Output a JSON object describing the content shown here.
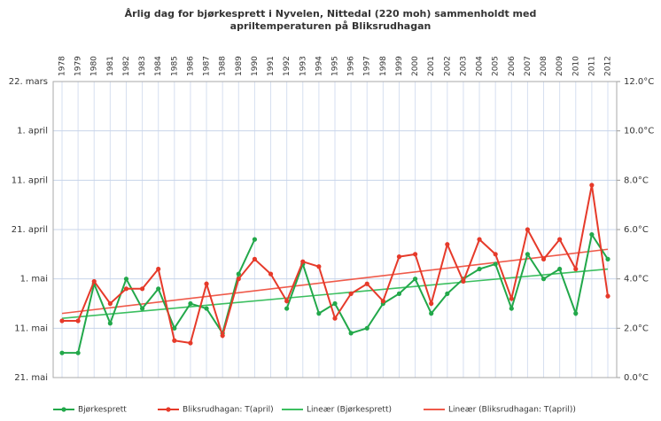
{
  "chart_data": {
    "type": "line",
    "title": [
      "Årlig dag for bjørkesprett  i Nyvelen, Nittedal (220 moh) sammenholdt med",
      "apriltemperaturen på Bliksrudhagan"
    ],
    "categories": [
      "1978",
      "1979",
      "1980",
      "1981",
      "1982",
      "1983",
      "1984",
      "1985",
      "1986",
      "1987",
      "1988",
      "1989",
      "1990",
      "1991",
      "1992",
      "1993",
      "1994",
      "1995",
      "1996",
      "1997",
      "1998",
      "1999",
      "2000",
      "2001",
      "2002",
      "2003",
      "2004",
      "2005",
      "2006",
      "2007",
      "2008",
      "2009",
      "2010",
      "2011",
      "2012"
    ],
    "series": [
      {
        "name": "Bjørkesprett",
        "color": "#22a84a",
        "values": [
          136,
          136,
          122,
          130,
          121,
          127,
          123,
          131,
          126,
          127,
          132,
          120,
          113,
          null,
          127,
          118,
          128,
          126,
          132,
          131,
          126,
          124,
          121,
          128,
          124,
          121,
          119,
          118,
          127,
          116,
          121,
          119,
          128,
          112,
          117
        ]
      },
      {
        "name": "Bliksrudhagan: T(april)",
        "color": "#e63a2a",
        "axis": "y2",
        "values": [
          2.3,
          2.3,
          3.9,
          3.0,
          3.6,
          3.6,
          4.4,
          1.5,
          1.4,
          3.8,
          1.7,
          4.0,
          4.8,
          4.2,
          3.1,
          4.7,
          4.5,
          2.4,
          3.4,
          3.8,
          3.1,
          4.9,
          5.0,
          3.0,
          5.4,
          3.9,
          5.6,
          5.0,
          3.2,
          6.0,
          4.8,
          5.6,
          4.4,
          7.8,
          3.3
        ]
      }
    ],
    "trends": [
      {
        "name": "Lineær (Bjørkesprett)",
        "color": "#3cbf60",
        "from": 129,
        "to": 119
      },
      {
        "name": "Lineær (Bliksrudhagan: T(april))",
        "color": "#ef5a4a",
        "axis": "y2",
        "from": 2.6,
        "to": 5.2
      }
    ],
    "ylim": [
      141,
      81
    ],
    "yticks": [
      {
        "value": 81,
        "label": "22. mars"
      },
      {
        "value": 91,
        "label": "1. april"
      },
      {
        "value": 101,
        "label": "11. april"
      },
      {
        "value": 111,
        "label": "21. april"
      },
      {
        "value": 121,
        "label": "1. mai"
      },
      {
        "value": 131,
        "label": "11. mai"
      },
      {
        "value": 141,
        "label": "21. mai"
      }
    ],
    "y2lim": [
      0,
      12
    ],
    "y2ticks": [
      {
        "value": 0,
        "label": "0.0°C"
      },
      {
        "value": 2,
        "label": "2.0°C"
      },
      {
        "value": 4,
        "label": "4.0°C"
      },
      {
        "value": 6,
        "label": "6.0°C"
      },
      {
        "value": 8,
        "label": "8.0°C"
      },
      {
        "value": 10,
        "label": "10.0°C"
      },
      {
        "value": 12,
        "label": "12.0°C"
      }
    ],
    "grid": true,
    "legend": "bottom"
  }
}
